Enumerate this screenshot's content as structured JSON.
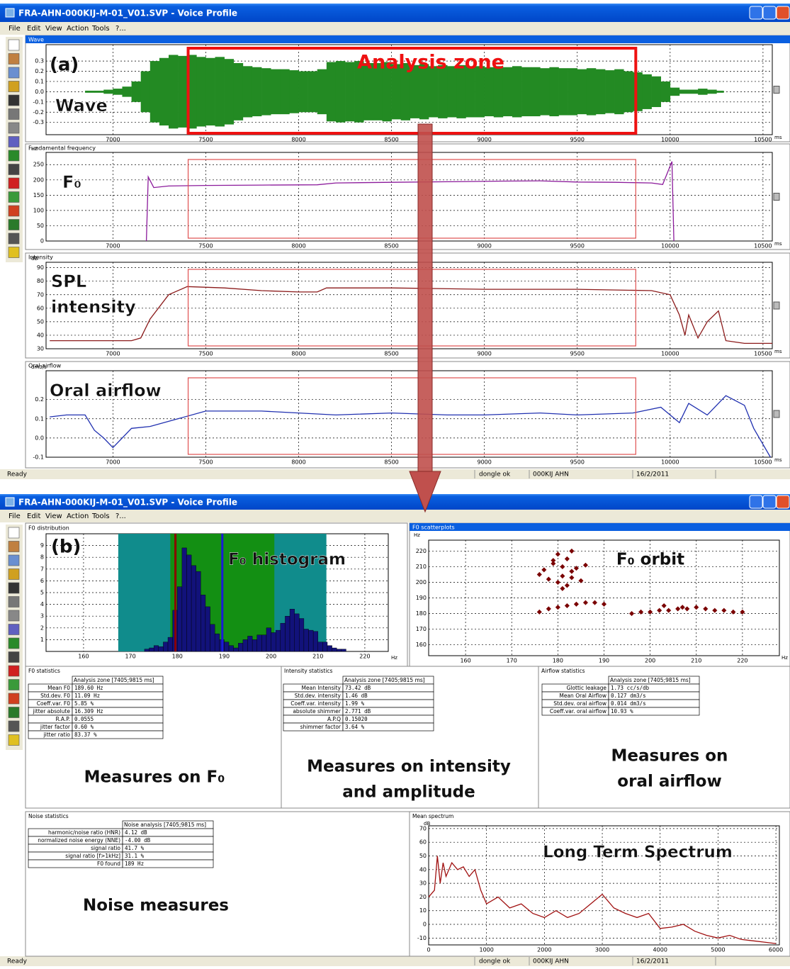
{
  "top": {
    "window": {
      "title": "FRA-AHN-000KIJ-M-01_V01.SVP - Voice Profile",
      "menu": [
        "File",
        "Edit",
        "View",
        "Action",
        "Tools",
        "?..."
      ],
      "status": [
        "Ready",
        "dongle ok",
        "000KIJ AHN",
        "16/2/2011"
      ]
    },
    "label": "(a)",
    "zone_label": "Analysis zone",
    "zone_tag": "Zone",
    "zone_ms": [
      7405,
      9815
    ],
    "xlim": [
      6640,
      10550
    ],
    "xticks": [
      7000,
      7500,
      8000,
      8500,
      9000,
      9500,
      10000,
      10500
    ],
    "x_unit": "ms",
    "panels": [
      {
        "title": "Wave",
        "tag": [
          "Wave"
        ],
        "type": "envelope",
        "color": "#238a23",
        "ylim": [
          -0.42,
          0.46
        ],
        "yticks": [
          0.3,
          0.2,
          0.1,
          {
            "value": 0,
            "label": "0.0"
          },
          -0.1,
          -0.2,
          -0.3
        ],
        "x": [
          6850,
          6900,
          6950,
          7000,
          7050,
          7100,
          7150,
          7200,
          7250,
          7300,
          7350,
          7400,
          7450,
          7500,
          7550,
          7600,
          7650,
          7700,
          7750,
          7800,
          7850,
          7900,
          7950,
          8000,
          8050,
          8100,
          8150,
          8200,
          8250,
          8300,
          8350,
          8400,
          8450,
          8500,
          8550,
          8600,
          8650,
          8700,
          8750,
          8800,
          8850,
          8900,
          8950,
          9000,
          9050,
          9100,
          9150,
          9200,
          9250,
          9300,
          9350,
          9400,
          9450,
          9500,
          9550,
          9600,
          9650,
          9700,
          9750,
          9800,
          9850,
          9900,
          9950,
          10000,
          10050,
          10100,
          10150,
          10200,
          10250
        ],
        "values": [
          0.01,
          0.01,
          0.02,
          0.03,
          0.05,
          0.1,
          0.2,
          0.3,
          0.33,
          0.36,
          0.35,
          0.36,
          0.34,
          0.33,
          0.34,
          0.32,
          0.28,
          0.25,
          0.24,
          0.23,
          0.22,
          0.22,
          0.21,
          0.2,
          0.2,
          0.22,
          0.29,
          0.3,
          0.29,
          0.3,
          0.28,
          0.28,
          0.29,
          0.27,
          0.28,
          0.26,
          0.27,
          0.25,
          0.26,
          0.25,
          0.26,
          0.25,
          0.25,
          0.24,
          0.25,
          0.24,
          0.25,
          0.24,
          0.24,
          0.23,
          0.24,
          0.23,
          0.23,
          0.22,
          0.23,
          0.22,
          0.21,
          0.22,
          0.2,
          0.19,
          0.17,
          0.15,
          0.1,
          0.04,
          0.02,
          0.02,
          0.03,
          0.02,
          0.01
        ]
      },
      {
        "title": "Fundamental frequency",
        "tag": [
          "F₀"
        ],
        "unit": "Hz",
        "type": "line",
        "color": "#8b1a9b",
        "ylim": [
          0,
          290
        ],
        "yticks": [
          0,
          50,
          100,
          150,
          200,
          250
        ],
        "x": [
          7180,
          7190,
          7220,
          7300,
          7500,
          7800,
          8100,
          8200,
          8500,
          8800,
          9100,
          9300,
          9500,
          9700,
          9900,
          9960,
          10010,
          10020
        ],
        "values": [
          0,
          210,
          175,
          180,
          182,
          183,
          184,
          190,
          192,
          194,
          196,
          197,
          193,
          192,
          190,
          185,
          260,
          0
        ]
      },
      {
        "title": "Intensity",
        "tag": [
          "SPL",
          "intensity"
        ],
        "unit": "dB",
        "type": "line",
        "color": "#8b1a1a",
        "ylim": [
          30,
          94
        ],
        "yticks": [
          30,
          40,
          50,
          60,
          70,
          80,
          90
        ],
        "x": [
          6660,
          7100,
          7150,
          7200,
          7300,
          7400,
          7600,
          7800,
          8000,
          8100,
          8150,
          8500,
          9000,
          9500,
          9900,
          10000,
          10050,
          10080,
          10100,
          10150,
          10200,
          10260,
          10300,
          10350,
          10400,
          10550
        ],
        "values": [
          36,
          36,
          38,
          52,
          70,
          76,
          75,
          73,
          72,
          72,
          75,
          75,
          74,
          74,
          73,
          70,
          55,
          40,
          55,
          38,
          50,
          58,
          36,
          35,
          34,
          34
        ]
      },
      {
        "title": "Oral airflow",
        "tag": [
          "Oral airflow"
        ],
        "unit": "dm3/s",
        "type": "line",
        "color": "#2030b0",
        "ylim": [
          -0.1,
          0.35
        ],
        "yticks": [
          -0.1,
          {
            "value": 0,
            "label": "0.0"
          },
          0.1,
          0.2
        ],
        "x": [
          6660,
          6750,
          6850,
          6900,
          6950,
          7000,
          7100,
          7200,
          7350,
          7500,
          7800,
          8000,
          8200,
          8500,
          8800,
          9000,
          9300,
          9500,
          9800,
          9950,
          10050,
          10100,
          10200,
          10300,
          10400,
          10450,
          10540
        ],
        "values": [
          0.11,
          0.12,
          0.12,
          0.04,
          0,
          -0.05,
          0.05,
          0.06,
          0.1,
          0.14,
          0.14,
          0.13,
          0.12,
          0.13,
          0.12,
          0.12,
          0.13,
          0.12,
          0.13,
          0.16,
          0.08,
          0.18,
          0.12,
          0.22,
          0.17,
          0.05,
          -0.1
        ]
      }
    ]
  },
  "bottom": {
    "window": {
      "title": "FRA-AHN-000KIJ-M-01_V01.SVP - Voice Profile",
      "menu": [
        "File",
        "Edit",
        "View",
        "Action",
        "Tools",
        "?..."
      ],
      "status": [
        "Ready",
        "dongle ok",
        "000KIJ AHN",
        "16/2/2011"
      ]
    },
    "label": "(b)",
    "histogram": {
      "type": "histogram",
      "panel_title": "F0 distribution",
      "annotation": "F₀ histogram",
      "color": "#12127a",
      "bins": [
        173,
        174,
        175,
        176,
        177,
        178,
        179,
        180,
        181,
        182,
        183,
        184,
        185,
        186,
        187,
        188,
        189,
        190,
        191,
        192,
        193,
        194,
        195,
        196,
        197,
        198,
        199,
        200,
        201,
        202,
        203,
        204,
        205,
        206,
        207,
        208,
        209,
        210,
        211,
        212,
        213,
        214,
        215,
        216
      ],
      "counts": [
        0.2,
        0.3,
        0.5,
        0.4,
        0.8,
        1.2,
        3.5,
        5.5,
        8.8,
        8.2,
        7.3,
        6.8,
        4.8,
        3.8,
        2.3,
        1.5,
        1.0,
        0.8,
        0.5,
        0.3,
        0.7,
        1.0,
        1.3,
        1.0,
        1.4,
        1.4,
        2.0,
        1.6,
        1.8,
        2.4,
        3.0,
        3.6,
        3.2,
        2.8,
        1.9,
        1.8,
        1.7,
        0.8,
        0.8,
        0.5,
        0.3,
        0.2,
        0.2
      ],
      "bands": [
        {
          "range": [
            167.4,
            211.8
          ],
          "color": "#108c8c"
        },
        {
          "range": [
            178.5,
            200.7
          ],
          "color": "#138f13"
        }
      ],
      "markers": [
        {
          "value": 179.6,
          "color": "#8b0000"
        },
        {
          "value": 189.6,
          "color": "#1a1ad8"
        }
      ],
      "xlim": [
        152,
        225
      ],
      "ylim": [
        0,
        10
      ],
      "xticks": [
        160,
        170,
        180,
        190,
        200,
        210,
        220
      ],
      "yticks": [
        1,
        2,
        3,
        4,
        5,
        6,
        7,
        8,
        9
      ],
      "x_unit": "Hz"
    },
    "scatter": {
      "type": "scatter",
      "panel_title": "F0 scatterplots",
      "annotation": "F₀ orbit",
      "color": "#7a0000",
      "x": [
        176,
        177,
        178,
        179,
        180,
        180,
        181,
        181,
        182,
        182,
        183,
        183,
        184,
        185,
        186,
        179,
        181,
        183,
        176,
        178,
        180,
        182,
        184,
        186,
        188,
        190,
        196,
        198,
        200,
        202,
        204,
        206,
        208,
        210,
        212,
        214,
        216,
        218,
        220,
        203,
        207
      ],
      "y": [
        205,
        208,
        202,
        212,
        218,
        200,
        210,
        204,
        215,
        198,
        207,
        203,
        209,
        201,
        211,
        214,
        196,
        220,
        181,
        183,
        184,
        185,
        186,
        187,
        187,
        186,
        180,
        181,
        181,
        182,
        182,
        183,
        183,
        184,
        183,
        182,
        182,
        181,
        181,
        185,
        184
      ],
      "xlim": [
        152,
        228
      ],
      "ylim": [
        153,
        227
      ],
      "xticks": [
        160,
        170,
        180,
        190,
        200,
        210,
        220
      ],
      "yticks": [
        160,
        170,
        180,
        190,
        200,
        210,
        220
      ],
      "x_unit": "Hz",
      "y_unit": "Hz"
    },
    "tables": [
      {
        "panel_title": "F0 statistics",
        "header": "Analysis zone [7405;9815 ms]",
        "caption": [
          "Measures on F₀"
        ],
        "rows": [
          [
            "Mean F0",
            "189.60 Hz"
          ],
          [
            "Std.dev. F0",
            "11.09 Hz"
          ],
          [
            "Coeff.var. F0",
            "5.85 %"
          ],
          [
            "jitter absolute",
            "16.309 Hz"
          ],
          [
            "R.A.P.",
            "0.0555"
          ],
          [
            "jitter factor",
            "0.60 %"
          ],
          [
            "jitter ratio",
            "83.37 %"
          ]
        ]
      },
      {
        "panel_title": "Intensity statistics",
        "header": "Analysis zone [7405;9815 ms]",
        "caption": [
          "Measures on intensity",
          "and amplitude"
        ],
        "rows": [
          [
            "Mean Intensity",
            "73.42 dB"
          ],
          [
            "Std.dev. intensity",
            "1.46 dB"
          ],
          [
            "Coeff.var. intensity",
            "1.99 %"
          ],
          [
            "absolute shimmer",
            "2.771 dB"
          ],
          [
            "A.P.Q",
            "0.15020"
          ],
          [
            "shimmer factor",
            "3.64 %"
          ]
        ]
      },
      {
        "panel_title": "Airflow statistics",
        "header": "Analysis zone [7405;9815 ms]",
        "caption": [
          "Measures on",
          "oral airflow"
        ],
        "rows": [
          [
            "Glottic leakage",
            "1.73 cc/s/db"
          ],
          [
            "Mean Oral Airflow",
            "0.127 dm3/s"
          ],
          [
            "Std.dev. oral airflow",
            "0.014 dm3/s"
          ],
          [
            "Coeff.var. oral airflow",
            "10.93 %"
          ]
        ]
      },
      {
        "panel_title": "Noise statistics",
        "header": "Noise analysis [7405;9815 ms]",
        "caption": [
          "Noise measures"
        ],
        "rows": [
          [
            "harmonic/noise ratio (HNR)",
            "4.12 dB"
          ],
          [
            "normalized noise energy (NNE)",
            "-4.00 dB"
          ],
          [
            "signal ratio",
            "41.7 %"
          ],
          [
            "signal ratio [f>1kHz]",
            "31.1 %"
          ],
          [
            "F0 found",
            "189 Hz"
          ]
        ]
      }
    ],
    "spectrum": {
      "type": "line",
      "panel_title": "Mean spectrum",
      "annotation": "Long Term Spectrum",
      "color": "#a01010",
      "x": [
        0,
        100,
        150,
        200,
        250,
        300,
        400,
        500,
        600,
        700,
        800,
        900,
        1000,
        1200,
        1400,
        1600,
        1800,
        2000,
        2200,
        2400,
        2600,
        2800,
        3000,
        3200,
        3400,
        3600,
        3800,
        4000,
        4200,
        4400,
        4600,
        4800,
        5000,
        5200,
        5400,
        5600,
        5800,
        6000
      ],
      "values": [
        20,
        25,
        50,
        30,
        45,
        35,
        45,
        40,
        42,
        35,
        40,
        25,
        15,
        20,
        12,
        15,
        8,
        5,
        10,
        5,
        8,
        15,
        22,
        12,
        8,
        5,
        8,
        -3,
        -2,
        0,
        -5,
        -8,
        -10,
        -8,
        -11,
        -12,
        -13,
        -14
      ],
      "xlim": [
        0,
        6060
      ],
      "ylim": [
        -15,
        72
      ],
      "xticks": [
        0,
        1000,
        2000,
        3000,
        4000,
        5000,
        6000
      ],
      "yticks": [
        -10,
        0,
        10,
        20,
        30,
        40,
        50,
        60,
        70
      ],
      "y_unit": "dB"
    }
  }
}
